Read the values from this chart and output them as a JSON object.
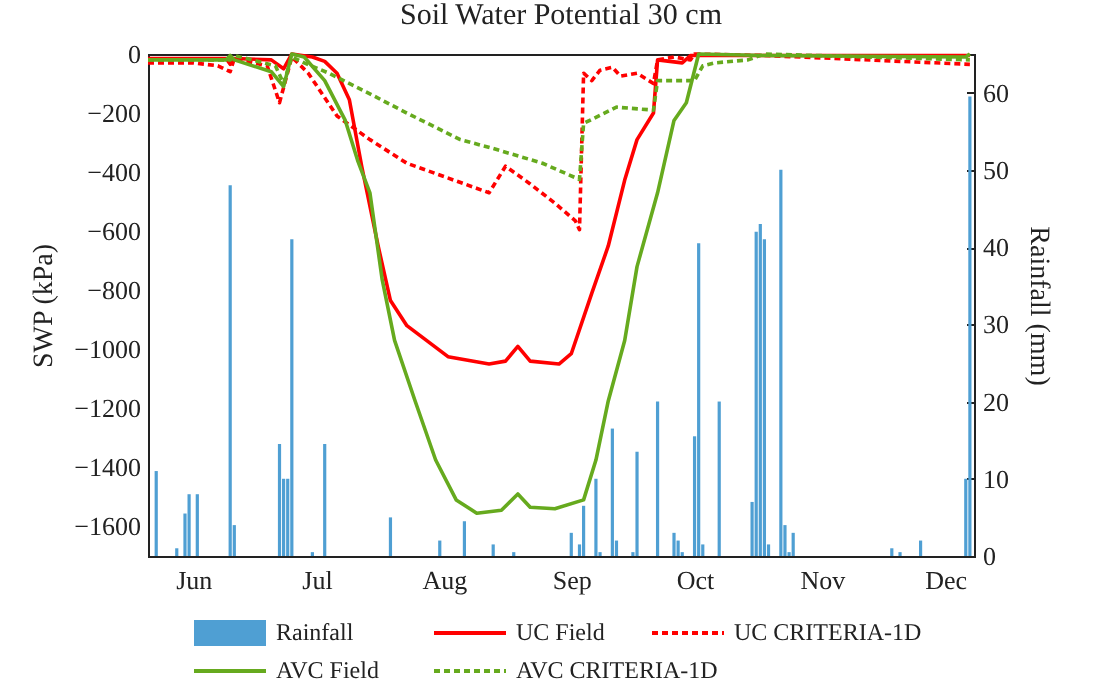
{
  "chart_data": {
    "type": "line",
    "title": "Soil Water Potential 30 cm",
    "ylabel": "SWP (kPa)",
    "y2label": "Rainfall (mm)",
    "legend": "bottom",
    "xlim": [
      "--06-04",
      "--12-22"
    ],
    "xticks": [
      {
        "value": "--06-15",
        "label": "Jun"
      },
      {
        "value": "--07-15",
        "label": "Jul"
      },
      {
        "value": "--08-15",
        "label": "Aug"
      },
      {
        "value": "--09-15",
        "label": "Sep"
      },
      {
        "value": "--10-15",
        "label": "Oct"
      },
      {
        "value": "--11-15",
        "label": "Nov"
      },
      {
        "value": "--12-15",
        "label": "Dec"
      }
    ],
    "ylim": [
      -1700,
      0
    ],
    "yticks": [
      0,
      -200,
      -400,
      -600,
      -800,
      -1000,
      -1200,
      -1400,
      -1600
    ],
    "y2lim": [
      0,
      65
    ],
    "y2ticks": [
      0,
      10,
      20,
      30,
      40,
      50,
      60
    ],
    "series": [
      {
        "name": "Rainfall",
        "type": "bar",
        "axis": "y2",
        "color": "#4f9fd3",
        "x": [
          "--06-06",
          "--06-11",
          "--06-13",
          "--06-14",
          "--06-16",
          "--06-24",
          "--06-25",
          "--07-06",
          "--07-07",
          "--07-08",
          "--07-09",
          "--07-14",
          "--07-17",
          "--08-02",
          "--08-14",
          "--08-20",
          "--08-27",
          "--09-01",
          "--09-15",
          "--09-17",
          "--09-18",
          "--09-21",
          "--09-22",
          "--09-25",
          "--09-26",
          "--09-30",
          "--10-01",
          "--10-06",
          "--10-10",
          "--10-11",
          "--10-12",
          "--10-15",
          "--10-16",
          "--10-17",
          "--10-21",
          "--10-29",
          "--10-30",
          "--10-31",
          "--11-01",
          "--11-02",
          "--11-05",
          "--11-06",
          "--11-07",
          "--11-08",
          "--12-02",
          "--12-04",
          "--12-09",
          "--12-20",
          "--12-21"
        ],
        "values": [
          11,
          1,
          5.5,
          8,
          8,
          48,
          4,
          14.5,
          10,
          10,
          41,
          0.5,
          14.5,
          5,
          2,
          4.5,
          1.5,
          0.5,
          3,
          1.5,
          6.5,
          10,
          0.5,
          16.5,
          2,
          0.5,
          13.5,
          20,
          3,
          2,
          0.5,
          15.5,
          40.5,
          1.5,
          20,
          7,
          42,
          43,
          41,
          1.5,
          50,
          4,
          0.5,
          3,
          1,
          0.5,
          2,
          10,
          59.5
        ]
      },
      {
        "name": "UC Field",
        "type": "line",
        "line_style": "solid",
        "color": "#ff0000",
        "x": [
          "--06-04",
          "--06-23",
          "--06-24",
          "--06-25",
          "--07-04",
          "--07-07",
          "--07-09",
          "--07-14",
          "--07-17",
          "--07-20",
          "--07-23",
          "--07-26",
          "--07-30",
          "--08-02",
          "--08-06",
          "--08-16",
          "--08-26",
          "--08-30",
          "--09-02",
          "--09-05",
          "--09-12",
          "--09-15",
          "--09-20",
          "--09-24",
          "--09-28",
          "--10-01",
          "--10-05",
          "--10-06",
          "--10-12",
          "--10-14",
          "--11-01",
          "--12-21"
        ],
        "values": [
          -15,
          -15,
          -35,
          -15,
          -20,
          -50,
          0,
          -10,
          -25,
          -65,
          -155,
          -380,
          -650,
          -835,
          -920,
          -1025,
          -1050,
          -1040,
          -990,
          -1040,
          -1050,
          -1015,
          -810,
          -650,
          -427,
          -290,
          -200,
          -20,
          -30,
          -5,
          -5,
          -5
        ]
      },
      {
        "name": "UC CRITERIA-1D",
        "type": "line",
        "line_style": "dashed",
        "color": "#ff0000",
        "x": [
          "--06-04",
          "--06-15",
          "--06-21",
          "--06-24",
          "--06-25",
          "--07-03",
          "--07-06",
          "--07-09",
          "--07-13",
          "--07-20",
          "--07-28",
          "--08-06",
          "--08-20",
          "--08-26",
          "--08-30",
          "--09-05",
          "--09-11",
          "--09-16",
          "--09-17",
          "--09-18",
          "--09-20",
          "--09-22",
          "--09-25",
          "--09-27",
          "--10-01",
          "--10-05",
          "--10-06",
          "--10-10",
          "--10-14",
          "--10-15",
          "--11-01",
          "--12-21"
        ],
        "values": [
          -30,
          -30,
          -40,
          -60,
          -15,
          -40,
          -165,
          -10,
          -65,
          -210,
          -290,
          -370,
          -440,
          -470,
          -380,
          -440,
          -505,
          -565,
          -595,
          -65,
          -90,
          -55,
          -45,
          -75,
          -65,
          -100,
          -20,
          -10,
          -20,
          0,
          -5,
          -35
        ]
      },
      {
        "name": "AVC Field",
        "type": "line",
        "line_style": "solid",
        "color": "#66aa1e",
        "x": [
          "--06-04",
          "--06-23",
          "--06-24",
          "--06-25",
          "--07-04",
          "--07-07",
          "--07-09",
          "--07-12",
          "--07-17",
          "--07-22",
          "--07-25",
          "--07-28",
          "--07-31",
          "--08-03",
          "--08-08",
          "--08-13",
          "--08-18",
          "--08-23",
          "--08-29",
          "--09-02",
          "--09-05",
          "--09-11",
          "--09-18",
          "--09-21",
          "--09-24",
          "--09-28",
          "--10-01",
          "--10-06",
          "--10-10",
          "--10-13",
          "--10-16",
          "--11-01",
          "--12-20",
          "--12-21"
        ],
        "values": [
          -20,
          -20,
          -5,
          -20,
          -60,
          -110,
          0,
          -10,
          -90,
          -225,
          -360,
          -470,
          -765,
          -970,
          -1175,
          -1375,
          -1510,
          -1555,
          -1545,
          -1490,
          -1535,
          -1540,
          -1510,
          -1375,
          -1175,
          -970,
          -720,
          -470,
          -225,
          -165,
          0,
          -5,
          -10,
          0
        ]
      },
      {
        "name": "AVC CRITERIA-1D",
        "type": "line",
        "line_style": "dashed",
        "color": "#66aa1e",
        "x": [
          "--06-04",
          "--06-24",
          "--06-25",
          "--07-05",
          "--07-07",
          "--07-09",
          "--07-12",
          "--07-18",
          "--07-28",
          "--08-06",
          "--08-19",
          "--08-27",
          "--09-08",
          "--09-17",
          "--09-18",
          "--09-26",
          "--10-05",
          "--10-06",
          "--10-15",
          "--10-17",
          "--10-20",
          "--10-28",
          "--11-01",
          "--12-21"
        ],
        "values": [
          -20,
          -20,
          -5,
          -40,
          -100,
          -10,
          -30,
          -65,
          -135,
          -200,
          -290,
          -320,
          -370,
          -425,
          -235,
          -180,
          -190,
          -90,
          -90,
          -40,
          -30,
          -20,
          0,
          -20
        ]
      }
    ]
  }
}
